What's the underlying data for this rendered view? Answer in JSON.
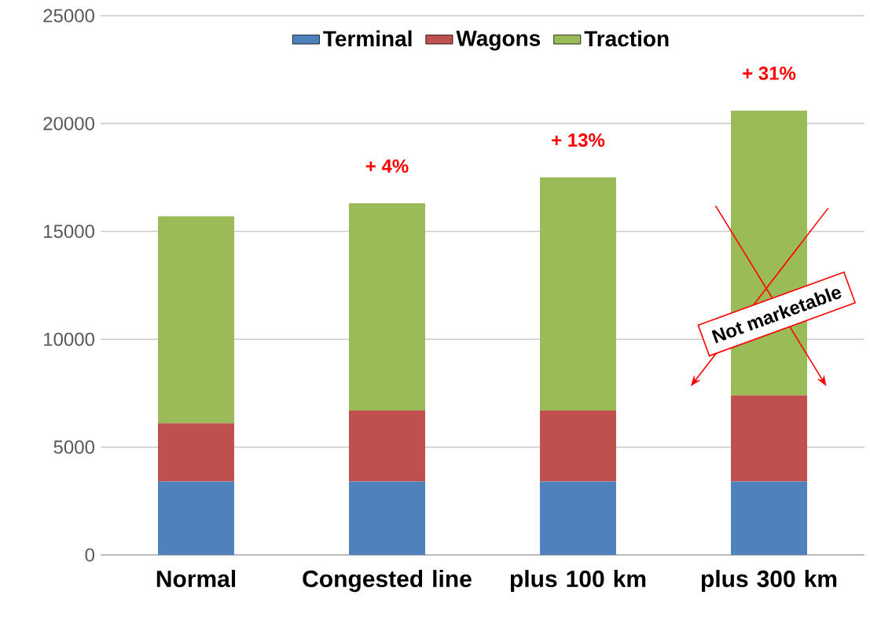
{
  "chart_data": {
    "type": "bar",
    "stacked": true,
    "categories": [
      "Normal",
      "Congested line",
      "plus 100 km",
      "plus 300 km"
    ],
    "series": [
      {
        "name": "Terminal",
        "color": "#4f81bd",
        "values": [
          3400,
          3400,
          3400,
          3400
        ]
      },
      {
        "name": "Wagons",
        "color": "#c0504d",
        "values": [
          2700,
          3300,
          3300,
          4000
        ]
      },
      {
        "name": "Traction",
        "color": "#9bbb59",
        "values": [
          9600,
          9600,
          10800,
          13200
        ]
      }
    ],
    "ylim": [
      0,
      25000
    ],
    "yticks": [
      0,
      5000,
      10000,
      15000,
      20000,
      25000
    ],
    "grid": "y",
    "legend": "top",
    "annotations": [
      {
        "text": "+ 4%",
        "x": "Congested line",
        "y": 16300
      },
      {
        "text": "+ 13%",
        "x": "plus 100 km",
        "y": 17500
      },
      {
        "text": "+ 31%",
        "x": "plus 300 km",
        "y": 20600
      },
      "Not marketable"
    ]
  }
}
